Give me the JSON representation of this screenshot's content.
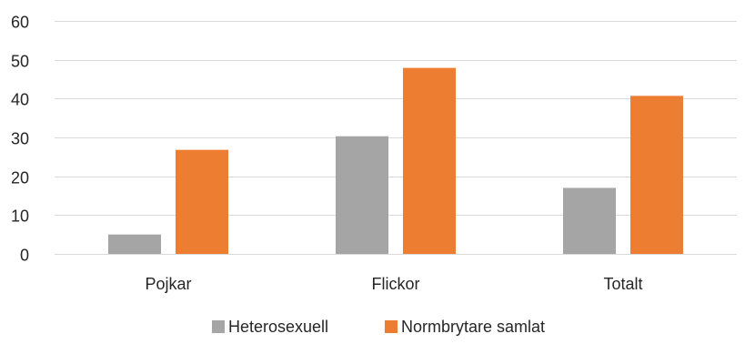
{
  "chart_data": {
    "type": "bar",
    "categories": [
      "Pojkar",
      "Flickor",
      "Totalt"
    ],
    "series": [
      {
        "name": "Heterosexuell",
        "values": [
          5,
          30.3,
          17
        ],
        "color": "#a5a5a5"
      },
      {
        "name": "Normbrytare samlat",
        "values": [
          26.8,
          47.9,
          40.7
        ],
        "color": "#ed7d31"
      }
    ],
    "ylim": [
      0,
      60
    ],
    "yticks": [
      0,
      10,
      20,
      30,
      40,
      50,
      60
    ],
    "grid": true,
    "legend_position": "bottom",
    "gridline_color": "#d9d9d9"
  }
}
